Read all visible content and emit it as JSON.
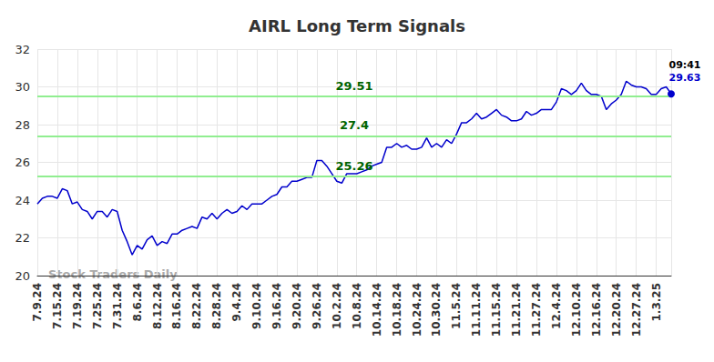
{
  "chart_data": {
    "type": "line",
    "title": "AIRL Long Term Signals",
    "watermark": "Stock Traders Daily",
    "color": "#0000cc",
    "grid": true,
    "categories": [
      "7.9.24",
      null,
      null,
      null,
      "7.15.24",
      null,
      null,
      null,
      "7.19.24",
      null,
      null,
      null,
      "7.25.24",
      null,
      null,
      null,
      "7.31.24",
      null,
      null,
      null,
      "8.6.24",
      null,
      null,
      null,
      "8.12.24",
      null,
      null,
      null,
      "8.16.24",
      null,
      null,
      null,
      "8.22.24",
      null,
      null,
      null,
      "8.28.24",
      null,
      null,
      null,
      "9.4.24",
      null,
      null,
      null,
      "9.10.24",
      null,
      null,
      null,
      "9.16.24",
      null,
      null,
      null,
      "9.20.24",
      null,
      null,
      null,
      "9.26.24",
      null,
      null,
      null,
      "10.2.24",
      null,
      null,
      null,
      "10.8.24",
      null,
      null,
      null,
      "10.14.24",
      null,
      null,
      null,
      "10.18.24",
      null,
      null,
      null,
      "10.24.24",
      null,
      null,
      null,
      "10.30.24",
      null,
      null,
      null,
      "11.5.24",
      null,
      null,
      null,
      "11.11.24",
      null,
      null,
      null,
      "11.15.24",
      null,
      null,
      null,
      "11.21.24",
      null,
      null,
      null,
      "11.27.24",
      null,
      null,
      null,
      "12.4.24",
      null,
      null,
      null,
      "12.10.24",
      null,
      null,
      null,
      "12.16.24",
      null,
      null,
      null,
      "12.20.24",
      null,
      null,
      null,
      "12.27.24",
      null,
      null,
      null,
      "1.3.25",
      null,
      null,
      null
    ],
    "values": [
      23.8,
      24.1,
      24.2,
      24.2,
      24.1,
      24.6,
      24.5,
      23.8,
      23.9,
      23.5,
      23.4,
      23.0,
      23.4,
      23.4,
      23.1,
      23.5,
      23.4,
      22.4,
      21.8,
      21.1,
      21.6,
      21.4,
      21.9,
      22.1,
      21.6,
      21.8,
      21.7,
      22.2,
      22.2,
      22.4,
      22.5,
      22.6,
      22.5,
      23.1,
      23.0,
      23.3,
      23.0,
      23.3,
      23.5,
      23.3,
      23.4,
      23.7,
      23.5,
      23.8,
      23.8,
      23.8,
      24.0,
      24.2,
      24.3,
      24.7,
      24.7,
      25.0,
      25.0,
      25.1,
      25.2,
      25.2,
      26.1,
      26.1,
      25.8,
      25.4,
      25.0,
      24.9,
      25.4,
      25.4,
      25.4,
      25.5,
      25.6,
      25.8,
      25.9,
      26.0,
      26.8,
      26.8,
      27.0,
      26.8,
      26.9,
      26.7,
      26.7,
      26.8,
      27.3,
      26.8,
      27.0,
      26.8,
      27.2,
      27.0,
      27.5,
      28.1,
      28.1,
      28.3,
      28.6,
      28.3,
      28.4,
      28.6,
      28.8,
      28.5,
      28.4,
      28.2,
      28.2,
      28.3,
      28.7,
      28.5,
      28.6,
      28.8,
      28.8,
      28.8,
      29.2,
      29.9,
      29.8,
      29.6,
      29.8,
      30.2,
      29.8,
      29.6,
      29.6,
      29.5,
      28.8,
      29.1,
      29.3,
      29.6,
      30.3,
      30.1,
      30.0,
      30.0,
      29.9,
      29.6,
      29.6,
      29.9,
      30.0,
      29.63
    ],
    "ylim": [
      20,
      32
    ],
    "yticks": [
      20,
      22,
      24,
      26,
      28,
      30,
      32
    ],
    "signal_levels": [
      29.51,
      27.4,
      25.26
    ],
    "signal_color": "#90ee90",
    "last_time": "09:41"
  }
}
